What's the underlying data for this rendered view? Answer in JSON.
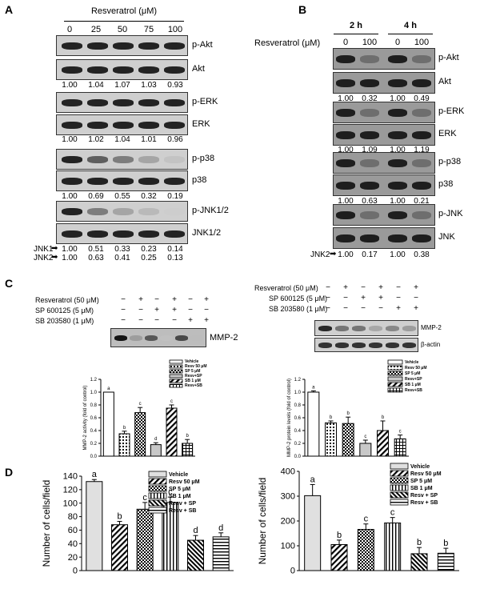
{
  "panelA": {
    "label": "A",
    "header": "Resveratrol (μM)",
    "doses": [
      "0",
      "25",
      "50",
      "75",
      "100"
    ],
    "bands": [
      {
        "name": "p-Akt",
        "intensity": [
          1,
          1,
          1,
          1,
          1
        ]
      },
      {
        "name": "Akt",
        "intensity": [
          1,
          1,
          1,
          1,
          1
        ]
      },
      {
        "name": "p-ERK",
        "intensity": [
          1,
          1,
          1,
          1,
          1
        ]
      },
      {
        "name": "ERK",
        "intensity": [
          1,
          1,
          1,
          1,
          1
        ]
      },
      {
        "name": "p-p38",
        "intensity": [
          1,
          0.7,
          0.55,
          0.35,
          0.2
        ]
      },
      {
        "name": "p38",
        "intensity": [
          1,
          1,
          1,
          1,
          1
        ]
      },
      {
        "name": "p-JNK1/2",
        "intensity": [
          1,
          0.55,
          0.35,
          0.25,
          0.15
        ]
      },
      {
        "name": "JNK1/2",
        "intensity": [
          1,
          1,
          1,
          1,
          1
        ]
      }
    ],
    "quants": [
      {
        "label": "",
        "values": [
          "1.00",
          "1.04",
          "1.07",
          "1.03",
          "0.93"
        ]
      },
      {
        "label": "",
        "values": [
          "1.00",
          "1.02",
          "1.04",
          "1.01",
          "0.96"
        ]
      },
      {
        "label": "",
        "values": [
          "1.00",
          "0.69",
          "0.55",
          "0.32",
          "0.19"
        ]
      },
      {
        "label": "JNK1",
        "values": [
          "1.00",
          "0.51",
          "0.33",
          "0.23",
          "0.14"
        ]
      },
      {
        "label": "JNK2",
        "values": [
          "1.00",
          "0.63",
          "0.41",
          "0.25",
          "0.13"
        ]
      }
    ]
  },
  "panelB": {
    "label": "B",
    "header": "Resveratrol (μM)",
    "times": [
      "2 h",
      "4 h"
    ],
    "doses": [
      "0",
      "100",
      "0",
      "100"
    ],
    "bands": [
      {
        "name": "p-Akt"
      },
      {
        "name": "Akt"
      },
      {
        "name": "p-ERK"
      },
      {
        "name": "ERK"
      },
      {
        "name": "p-p38"
      },
      {
        "name": "p38"
      },
      {
        "name": "p-JNK"
      },
      {
        "name": "JNK"
      }
    ],
    "quants": [
      {
        "label": "",
        "values": [
          "1.00",
          "0.32",
          "1.00",
          "0.49"
        ]
      },
      {
        "label": "",
        "values": [
          "1.00",
          "1.09",
          "1.00",
          "1.19"
        ]
      },
      {
        "label": "",
        "values": [
          "1.00",
          "0.63",
          "1.00",
          "0.21"
        ]
      },
      {
        "label": "JNK2",
        "values": [
          "1.00",
          "0.17",
          "1.00",
          "0.38"
        ]
      }
    ]
  },
  "panelC": {
    "label": "C",
    "treatments": [
      {
        "name": "Resveratrol (50 μM)",
        "signs": [
          "−",
          "+",
          "−",
          "+",
          "−",
          "+"
        ]
      },
      {
        "name": "SP 600125 (5 μM)",
        "signs": [
          "−",
          "−",
          "+",
          "+",
          "−",
          "−"
        ]
      },
      {
        "name": "SB 203580 (1 μM)",
        "signs": [
          "−",
          "−",
          "−",
          "−",
          "+",
          "+"
        ]
      }
    ],
    "left_band": "MMP-2",
    "right_bands": [
      "MMP-2",
      "β-actin"
    ],
    "legend": [
      "Vehicle",
      "Resv 50 μM",
      "SP 5 μM",
      "Resv+SP",
      "SB 1 μM",
      "Resv+SB"
    ],
    "left_chart": {
      "type": "bar",
      "ylabel": "MMP-2 activity (fold of control)",
      "ylim": [
        0,
        1.2
      ],
      "ticks": [
        "0.0",
        "0.2",
        "0.4",
        "0.6",
        "0.8",
        "1.0",
        "1.2"
      ],
      "values": [
        1.0,
        0.35,
        0.68,
        0.18,
        0.75,
        0.2
      ],
      "errors": [
        0,
        0.04,
        0.08,
        0.03,
        0.05,
        0.06
      ],
      "letters": [
        "a",
        "b",
        "c",
        "d",
        "c",
        "b"
      ]
    },
    "right_chart": {
      "type": "bar",
      "ylabel": "MMP-2 protein levels (fold of control)",
      "ylim": [
        0,
        1.2
      ],
      "ticks": [
        "0.0",
        "0.2",
        "0.4",
        "0.6",
        "0.8",
        "1.0",
        "1.2"
      ],
      "values": [
        1.0,
        0.52,
        0.51,
        0.2,
        0.4,
        0.27
      ],
      "errors": [
        0.02,
        0.03,
        0.1,
        0.05,
        0.15,
        0.06
      ],
      "letters": [
        "a",
        "b",
        "b",
        "c",
        "b",
        "c"
      ]
    }
  },
  "panelD": {
    "label": "D",
    "legend": [
      "Vehicle",
      "Resv 50 μM",
      "SP 5 μM",
      "SB 1 μM",
      "Resv + SP",
      "Resv + SB"
    ],
    "left_chart": {
      "type": "bar",
      "ylabel": "Number of cells/field",
      "ylim": [
        0,
        140
      ],
      "ticks": [
        "0",
        "20",
        "40",
        "60",
        "80",
        "100",
        "120",
        "140"
      ],
      "values": [
        132,
        68,
        91,
        101,
        45,
        50
      ],
      "errors": [
        3,
        5,
        10,
        8,
        7,
        6
      ],
      "letters": [
        "a",
        "b",
        "c",
        "c",
        "d",
        "d"
      ]
    },
    "right_chart": {
      "type": "bar",
      "ylabel": "Number of cells/field",
      "ylim": [
        0,
        400
      ],
      "ticks": [
        "0",
        "100",
        "200",
        "300",
        "400"
      ],
      "values": [
        302,
        105,
        166,
        192,
        68,
        70
      ],
      "errors": [
        45,
        18,
        22,
        22,
        25,
        20
      ],
      "letters": [
        "a",
        "b",
        "c",
        "c",
        "b",
        "b"
      ]
    }
  },
  "chart_data": [
    {
      "type": "bar",
      "ylabel": "MMP-2 activity (fold of control)",
      "categories": [
        "Vehicle",
        "Resv 50 μM",
        "SP 5 μM",
        "Resv+SP",
        "SB 1 μM",
        "Resv+SB"
      ],
      "values": [
        1.0,
        0.35,
        0.68,
        0.18,
        0.75,
        0.2
      ],
      "ylim": [
        0,
        1.2
      ]
    },
    {
      "type": "bar",
      "ylabel": "MMP-2 protein levels (fold of control)",
      "categories": [
        "Vehicle",
        "Resv 50 μM",
        "SP 5 μM",
        "Resv+SP",
        "SB 1 μM",
        "Resv+SB"
      ],
      "values": [
        1.0,
        0.52,
        0.51,
        0.2,
        0.4,
        0.27
      ],
      "ylim": [
        0,
        1.2
      ]
    },
    {
      "type": "bar",
      "ylabel": "Number of cells/field",
      "categories": [
        "Vehicle",
        "Resv 50 μM",
        "SP 5 μM",
        "SB 1 μM",
        "Resv + SP",
        "Resv + SB"
      ],
      "values": [
        132,
        68,
        91,
        101,
        45,
        50
      ],
      "ylim": [
        0,
        140
      ]
    },
    {
      "type": "bar",
      "ylabel": "Number of cells/field",
      "categories": [
        "Vehicle",
        "Resv 50 μM",
        "SP 5 μM",
        "SB 1 μM",
        "Resv + SP",
        "Resv + SB"
      ],
      "values": [
        302,
        105,
        166,
        192,
        68,
        70
      ],
      "ylim": [
        0,
        400
      ]
    }
  ]
}
